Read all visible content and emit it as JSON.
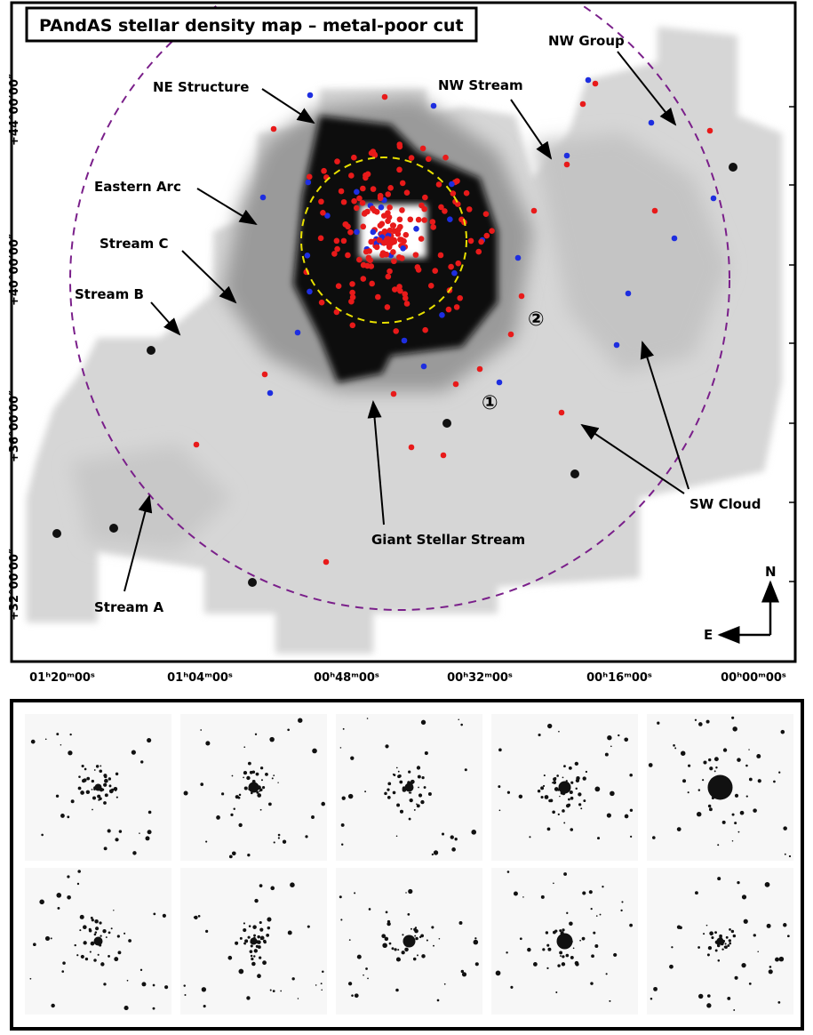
{
  "header": {
    "title": "PAndAS stellar density map – metal-poor cut"
  },
  "map": {
    "y_axis_ticks": [
      "+44°00′00″",
      "+40°00′00″",
      "+36°00′00″",
      "+32°00′00″"
    ],
    "x_axis_ticks": [
      "01ʰ20ᵐ00ˢ",
      "01ʰ04ᵐ00ˢ",
      "00ʰ48ᵐ00ˢ",
      "00ʰ32ᵐ00ˢ",
      "00ʰ16ᵐ00ˢ",
      "00ʰ00ᵐ00ˢ"
    ],
    "labels": [
      "NE Structure",
      "Eastern Arc",
      "Stream C",
      "Stream B",
      "Stream A",
      "Giant Stellar Stream",
      "NW Stream",
      "NW Group",
      "SW Cloud"
    ],
    "markers": [
      "①",
      "②"
    ],
    "compass": {
      "north": "N",
      "east": "E"
    }
  }
}
